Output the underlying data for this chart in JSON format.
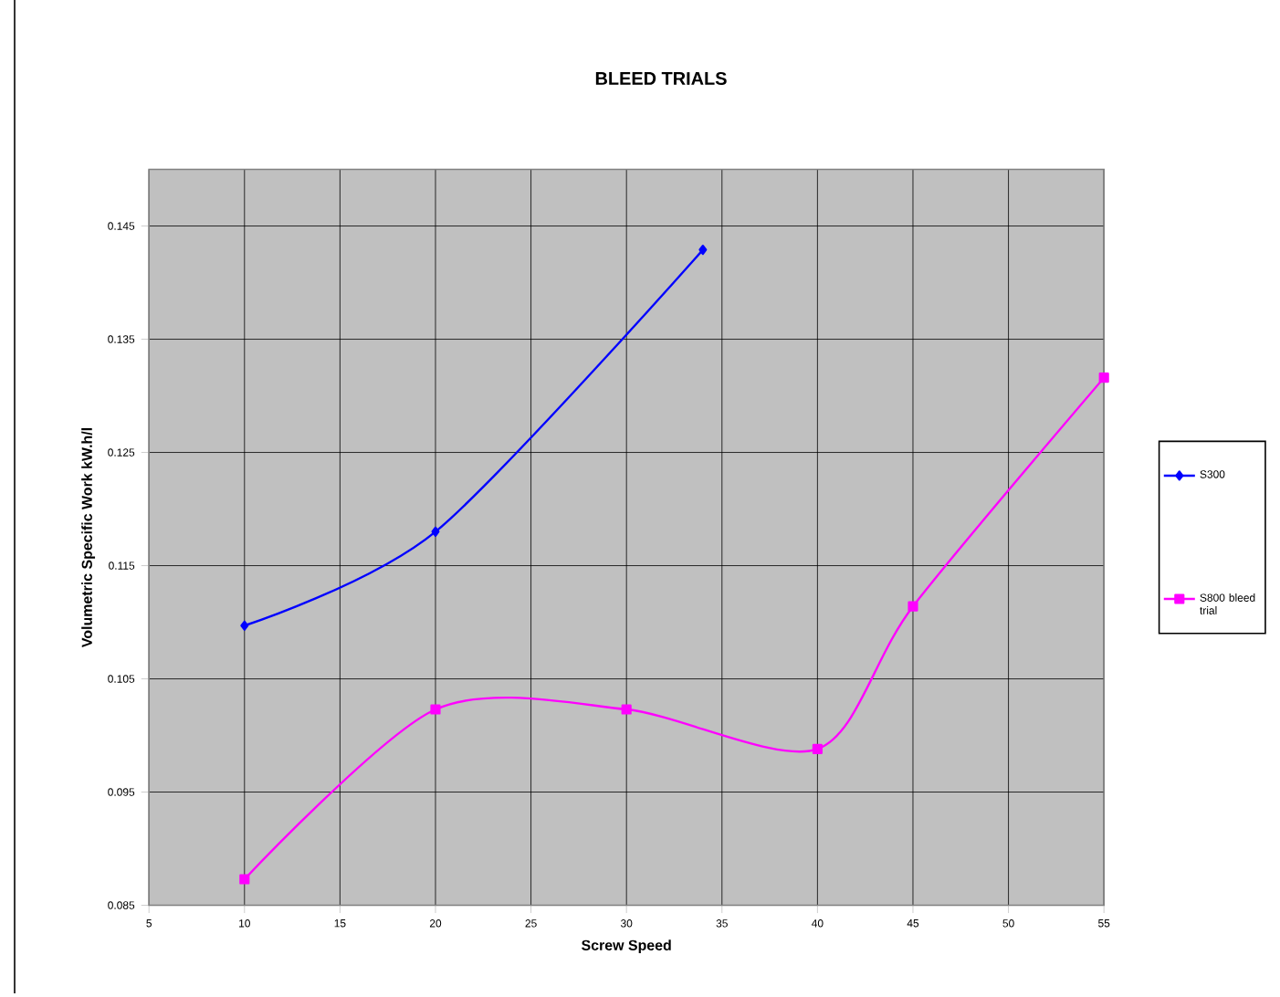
{
  "chart_data": {
    "type": "line",
    "title": "BLEED TRIALS",
    "xlabel": "Screw Speed",
    "ylabel": "Volumetric Specific Work kW.h/l",
    "series": [
      {
        "name": "S300",
        "color": "#0000ff",
        "marker": "diamond",
        "x": [
          10,
          20,
          34
        ],
        "values": [
          0.1097,
          0.118,
          0.1429
        ]
      },
      {
        "name": "S800 bleed trial",
        "color": "#ff00ff",
        "marker": "square",
        "x": [
          10,
          20,
          30,
          40,
          45,
          55
        ],
        "values": [
          0.0873,
          0.1023,
          0.1023,
          0.0988,
          0.1114,
          0.1316
        ]
      }
    ],
    "xlim": [
      5,
      55
    ],
    "xticks": [
      5,
      10,
      15,
      20,
      25,
      30,
      35,
      40,
      45,
      50,
      55
    ],
    "ylim": [
      0.085,
      0.15
    ],
    "yticks": [
      0.085,
      0.095,
      0.105,
      0.115,
      0.125,
      0.135,
      0.145
    ],
    "grid": true,
    "legend": "right",
    "line_style": "solid"
  }
}
